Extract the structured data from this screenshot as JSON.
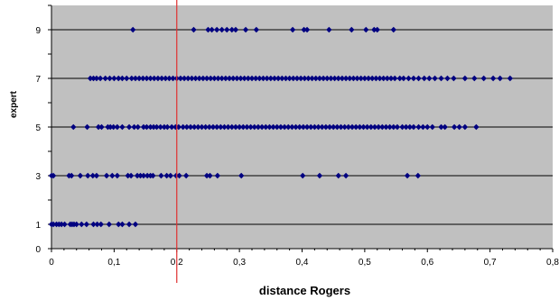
{
  "chart_data": {
    "type": "scatter",
    "title": "",
    "xlabel": "distance Rogers",
    "ylabel": "expert",
    "xlim": [
      0,
      0.8
    ],
    "ylim": [
      0,
      10
    ],
    "x_ticks": [
      "0",
      "0,1",
      "0,2",
      "0,3",
      "0,4",
      "0,5",
      "0,6",
      "0,7",
      "0,8"
    ],
    "y_ticks": [
      "0",
      "1",
      "3",
      "5",
      "7",
      "9"
    ],
    "y_tick_values": [
      0,
      1,
      3,
      5,
      7,
      9
    ],
    "horizontal_gridlines": [
      1,
      3,
      5,
      7,
      9
    ],
    "grid": true,
    "legend": "none",
    "reference_line": {
      "axis": "x",
      "value": 0.2,
      "color": "#e03030"
    },
    "colors": {
      "plot_background": "#c0c0c0",
      "marker": "#000080",
      "gridline": "#000000"
    },
    "series": [
      {
        "marker": "diamond",
        "points": [
          [
            0.0,
            1
          ],
          [
            0.003,
            1
          ],
          [
            0.008,
            1
          ],
          [
            0.012,
            1
          ],
          [
            0.016,
            1
          ],
          [
            0.021,
            1
          ],
          [
            0.03,
            1
          ],
          [
            0.033,
            1
          ],
          [
            0.036,
            1
          ],
          [
            0.04,
            1
          ],
          [
            0.048,
            1
          ],
          [
            0.056,
            1
          ],
          [
            0.067,
            1
          ],
          [
            0.073,
            1
          ],
          [
            0.079,
            1
          ],
          [
            0.092,
            1
          ],
          [
            0.107,
            1
          ],
          [
            0.113,
            1
          ],
          [
            0.124,
            1
          ],
          [
            0.134,
            1
          ],
          [
            0.0,
            3
          ],
          [
            0.003,
            3
          ],
          [
            0.028,
            3
          ],
          [
            0.032,
            3
          ],
          [
            0.046,
            3
          ],
          [
            0.058,
            3
          ],
          [
            0.066,
            3
          ],
          [
            0.072,
            3
          ],
          [
            0.088,
            3
          ],
          [
            0.097,
            3
          ],
          [
            0.105,
            3
          ],
          [
            0.122,
            3
          ],
          [
            0.127,
            3
          ],
          [
            0.137,
            3
          ],
          [
            0.142,
            3
          ],
          [
            0.147,
            3
          ],
          [
            0.153,
            3
          ],
          [
            0.158,
            3
          ],
          [
            0.162,
            3
          ],
          [
            0.175,
            3
          ],
          [
            0.184,
            3
          ],
          [
            0.19,
            3
          ],
          [
            0.199,
            3
          ],
          [
            0.204,
            3
          ],
          [
            0.215,
            3
          ],
          [
            0.248,
            3
          ],
          [
            0.253,
            3
          ],
          [
            0.265,
            3
          ],
          [
            0.303,
            3
          ],
          [
            0.401,
            3
          ],
          [
            0.428,
            3
          ],
          [
            0.458,
            3
          ],
          [
            0.47,
            3
          ],
          [
            0.568,
            3
          ],
          [
            0.585,
            3
          ],
          [
            0.035,
            5
          ],
          [
            0.057,
            5
          ],
          [
            0.075,
            5
          ],
          [
            0.08,
            5
          ],
          [
            0.09,
            5
          ],
          [
            0.094,
            5
          ],
          [
            0.099,
            5
          ],
          [
            0.105,
            5
          ],
          [
            0.113,
            5
          ],
          [
            0.124,
            5
          ],
          [
            0.132,
            5
          ],
          [
            0.138,
            5
          ],
          [
            0.147,
            5
          ],
          [
            0.152,
            5
          ],
          [
            0.158,
            5
          ],
          [
            0.163,
            5
          ],
          [
            0.168,
            5
          ],
          [
            0.174,
            5
          ],
          [
            0.18,
            5
          ],
          [
            0.185,
            5
          ],
          [
            0.192,
            5
          ],
          [
            0.198,
            5
          ],
          [
            0.203,
            5
          ],
          [
            0.21,
            5
          ],
          [
            0.216,
            5
          ],
          [
            0.222,
            5
          ],
          [
            0.228,
            5
          ],
          [
            0.234,
            5
          ],
          [
            0.24,
            5
          ],
          [
            0.246,
            5
          ],
          [
            0.252,
            5
          ],
          [
            0.258,
            5
          ],
          [
            0.264,
            5
          ],
          [
            0.27,
            5
          ],
          [
            0.276,
            5
          ],
          [
            0.282,
            5
          ],
          [
            0.288,
            5
          ],
          [
            0.294,
            5
          ],
          [
            0.3,
            5
          ],
          [
            0.306,
            5
          ],
          [
            0.312,
            5
          ],
          [
            0.318,
            5
          ],
          [
            0.324,
            5
          ],
          [
            0.33,
            5
          ],
          [
            0.336,
            5
          ],
          [
            0.342,
            5
          ],
          [
            0.348,
            5
          ],
          [
            0.354,
            5
          ],
          [
            0.36,
            5
          ],
          [
            0.366,
            5
          ],
          [
            0.372,
            5
          ],
          [
            0.378,
            5
          ],
          [
            0.384,
            5
          ],
          [
            0.39,
            5
          ],
          [
            0.396,
            5
          ],
          [
            0.402,
            5
          ],
          [
            0.408,
            5
          ],
          [
            0.414,
            5
          ],
          [
            0.42,
            5
          ],
          [
            0.426,
            5
          ],
          [
            0.432,
            5
          ],
          [
            0.438,
            5
          ],
          [
            0.444,
            5
          ],
          [
            0.45,
            5
          ],
          [
            0.456,
            5
          ],
          [
            0.462,
            5
          ],
          [
            0.468,
            5
          ],
          [
            0.474,
            5
          ],
          [
            0.48,
            5
          ],
          [
            0.486,
            5
          ],
          [
            0.492,
            5
          ],
          [
            0.498,
            5
          ],
          [
            0.504,
            5
          ],
          [
            0.51,
            5
          ],
          [
            0.516,
            5
          ],
          [
            0.522,
            5
          ],
          [
            0.528,
            5
          ],
          [
            0.534,
            5
          ],
          [
            0.54,
            5
          ],
          [
            0.546,
            5
          ],
          [
            0.552,
            5
          ],
          [
            0.56,
            5
          ],
          [
            0.566,
            5
          ],
          [
            0.572,
            5
          ],
          [
            0.578,
            5
          ],
          [
            0.586,
            5
          ],
          [
            0.593,
            5
          ],
          [
            0.6,
            5
          ],
          [
            0.608,
            5
          ],
          [
            0.622,
            5
          ],
          [
            0.628,
            5
          ],
          [
            0.643,
            5
          ],
          [
            0.651,
            5
          ],
          [
            0.66,
            5
          ],
          [
            0.678,
            5
          ],
          [
            0.062,
            7
          ],
          [
            0.067,
            7
          ],
          [
            0.072,
            7
          ],
          [
            0.078,
            7
          ],
          [
            0.086,
            7
          ],
          [
            0.093,
            7
          ],
          [
            0.1,
            7
          ],
          [
            0.107,
            7
          ],
          [
            0.113,
            7
          ],
          [
            0.12,
            7
          ],
          [
            0.128,
            7
          ],
          [
            0.134,
            7
          ],
          [
            0.14,
            7
          ],
          [
            0.146,
            7
          ],
          [
            0.152,
            7
          ],
          [
            0.158,
            7
          ],
          [
            0.164,
            7
          ],
          [
            0.17,
            7
          ],
          [
            0.176,
            7
          ],
          [
            0.182,
            7
          ],
          [
            0.188,
            7
          ],
          [
            0.194,
            7
          ],
          [
            0.2,
            7
          ],
          [
            0.206,
            7
          ],
          [
            0.212,
            7
          ],
          [
            0.218,
            7
          ],
          [
            0.224,
            7
          ],
          [
            0.23,
            7
          ],
          [
            0.236,
            7
          ],
          [
            0.242,
            7
          ],
          [
            0.248,
            7
          ],
          [
            0.254,
            7
          ],
          [
            0.26,
            7
          ],
          [
            0.266,
            7
          ],
          [
            0.272,
            7
          ],
          [
            0.278,
            7
          ],
          [
            0.284,
            7
          ],
          [
            0.29,
            7
          ],
          [
            0.296,
            7
          ],
          [
            0.302,
            7
          ],
          [
            0.308,
            7
          ],
          [
            0.314,
            7
          ],
          [
            0.32,
            7
          ],
          [
            0.326,
            7
          ],
          [
            0.332,
            7
          ],
          [
            0.338,
            7
          ],
          [
            0.344,
            7
          ],
          [
            0.35,
            7
          ],
          [
            0.356,
            7
          ],
          [
            0.362,
            7
          ],
          [
            0.368,
            7
          ],
          [
            0.374,
            7
          ],
          [
            0.38,
            7
          ],
          [
            0.386,
            7
          ],
          [
            0.392,
            7
          ],
          [
            0.398,
            7
          ],
          [
            0.404,
            7
          ],
          [
            0.41,
            7
          ],
          [
            0.416,
            7
          ],
          [
            0.422,
            7
          ],
          [
            0.428,
            7
          ],
          [
            0.434,
            7
          ],
          [
            0.44,
            7
          ],
          [
            0.446,
            7
          ],
          [
            0.452,
            7
          ],
          [
            0.458,
            7
          ],
          [
            0.464,
            7
          ],
          [
            0.47,
            7
          ],
          [
            0.476,
            7
          ],
          [
            0.482,
            7
          ],
          [
            0.488,
            7
          ],
          [
            0.494,
            7
          ],
          [
            0.5,
            7
          ],
          [
            0.506,
            7
          ],
          [
            0.512,
            7
          ],
          [
            0.518,
            7
          ],
          [
            0.524,
            7
          ],
          [
            0.53,
            7
          ],
          [
            0.536,
            7
          ],
          [
            0.542,
            7
          ],
          [
            0.548,
            7
          ],
          [
            0.556,
            7
          ],
          [
            0.562,
            7
          ],
          [
            0.57,
            7
          ],
          [
            0.578,
            7
          ],
          [
            0.586,
            7
          ],
          [
            0.595,
            7
          ],
          [
            0.603,
            7
          ],
          [
            0.612,
            7
          ],
          [
            0.622,
            7
          ],
          [
            0.632,
            7
          ],
          [
            0.642,
            7
          ],
          [
            0.66,
            7
          ],
          [
            0.675,
            7
          ],
          [
            0.69,
            7
          ],
          [
            0.705,
            7
          ],
          [
            0.716,
            7
          ],
          [
            0.732,
            7
          ],
          [
            0.13,
            9
          ],
          [
            0.227,
            9
          ],
          [
            0.25,
            9
          ],
          [
            0.256,
            9
          ],
          [
            0.264,
            9
          ],
          [
            0.272,
            9
          ],
          [
            0.28,
            9
          ],
          [
            0.288,
            9
          ],
          [
            0.294,
            9
          ],
          [
            0.31,
            9
          ],
          [
            0.327,
            9
          ],
          [
            0.385,
            9
          ],
          [
            0.403,
            9
          ],
          [
            0.408,
            9
          ],
          [
            0.443,
            9
          ],
          [
            0.479,
            9
          ],
          [
            0.502,
            9
          ],
          [
            0.515,
            9
          ],
          [
            0.52,
            9
          ],
          [
            0.546,
            9
          ]
        ]
      }
    ]
  }
}
